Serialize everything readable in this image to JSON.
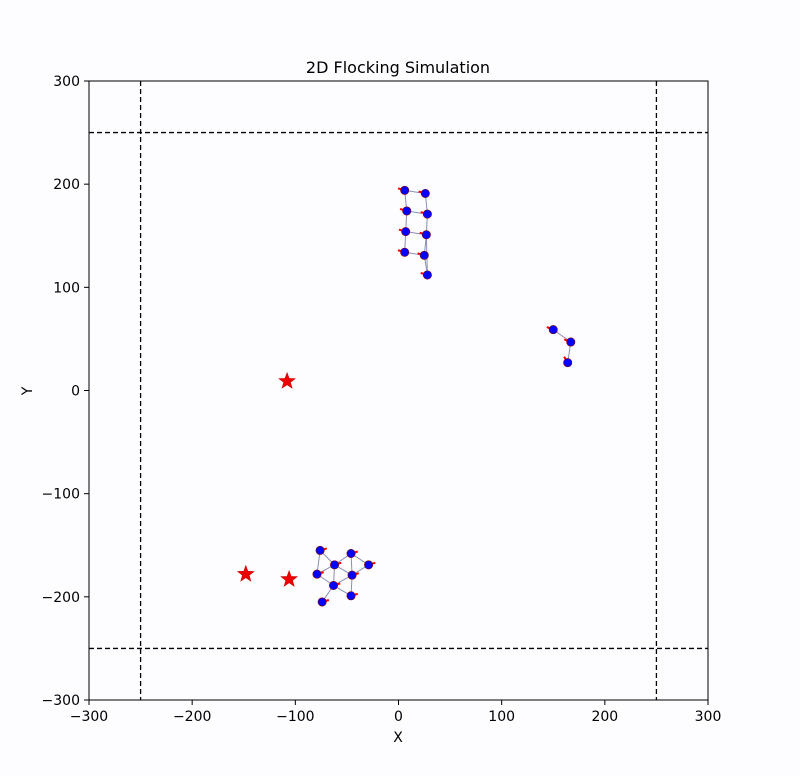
{
  "chart_data": {
    "type": "scatter",
    "title": "2D Flocking Simulation",
    "xlabel": "X",
    "ylabel": "Y",
    "xlim": [
      -300,
      300
    ],
    "ylim": [
      -300,
      300
    ],
    "xticks": [
      -300,
      -200,
      -100,
      0,
      100,
      200,
      300
    ],
    "yticks": [
      -300,
      -200,
      -100,
      0,
      100,
      200,
      300
    ],
    "xtick_labels": [
      "−300",
      "−200",
      "−100",
      "0",
      "100",
      "200",
      "300"
    ],
    "ytick_labels": [
      "−300",
      "−200",
      "−100",
      "0",
      "100",
      "200",
      "300"
    ],
    "grid": false,
    "boundary": {
      "xmin": -250,
      "xmax": 250,
      "ymin": -250,
      "ymax": 250
    },
    "agents": [
      {
        "x": 6,
        "y": 194,
        "vx": -1,
        "vy": 0.3
      },
      {
        "x": 26,
        "y": 191,
        "vx": -1,
        "vy": 0.3
      },
      {
        "x": 8,
        "y": 174,
        "vx": -1,
        "vy": 0.3
      },
      {
        "x": 28,
        "y": 171,
        "vx": -1,
        "vy": 0.3
      },
      {
        "x": 7,
        "y": 154,
        "vx": -1,
        "vy": 0.3
      },
      {
        "x": 27,
        "y": 151,
        "vx": -1,
        "vy": 0.3
      },
      {
        "x": 6,
        "y": 134,
        "vx": -1,
        "vy": 0.3
      },
      {
        "x": 25,
        "y": 131,
        "vx": -1,
        "vy": 0.3
      },
      {
        "x": 28,
        "y": 112,
        "vx": -1,
        "vy": 0.3
      },
      {
        "x": 150,
        "y": 59,
        "vx": -1,
        "vy": 0.4
      },
      {
        "x": 167,
        "y": 47,
        "vx": -1,
        "vy": 0.4
      },
      {
        "x": 164,
        "y": 27,
        "vx": -0.6,
        "vy": 1
      },
      {
        "x": -76,
        "y": -155,
        "vx": 1,
        "vy": 0.3
      },
      {
        "x": -46,
        "y": -158,
        "vx": 1,
        "vy": 0.3
      },
      {
        "x": -62,
        "y": -169,
        "vx": 1,
        "vy": 0.3
      },
      {
        "x": -29,
        "y": -169,
        "vx": 1,
        "vy": 0.3
      },
      {
        "x": -79,
        "y": -178,
        "vx": 1,
        "vy": 0.3
      },
      {
        "x": -45,
        "y": -179,
        "vx": 1,
        "vy": 0.3
      },
      {
        "x": -63,
        "y": -189,
        "vx": 1,
        "vy": 0.3
      },
      {
        "x": -46,
        "y": -199,
        "vx": 1,
        "vy": 0.3
      },
      {
        "x": -74,
        "y": -205,
        "vx": 1,
        "vy": 0.3
      }
    ],
    "links": [
      [
        0,
        1
      ],
      [
        0,
        2
      ],
      [
        1,
        3
      ],
      [
        2,
        3
      ],
      [
        2,
        4
      ],
      [
        3,
        5
      ],
      [
        4,
        5
      ],
      [
        4,
        6
      ],
      [
        5,
        7
      ],
      [
        6,
        7
      ],
      [
        7,
        8
      ],
      [
        5,
        8
      ],
      [
        9,
        10
      ],
      [
        10,
        11
      ],
      [
        12,
        14
      ],
      [
        12,
        16
      ],
      [
        13,
        14
      ],
      [
        13,
        15
      ],
      [
        14,
        16
      ],
      [
        14,
        17
      ],
      [
        14,
        18
      ],
      [
        15,
        17
      ],
      [
        16,
        18
      ],
      [
        17,
        18
      ],
      [
        17,
        19
      ],
      [
        18,
        19
      ],
      [
        18,
        20
      ],
      [
        13,
        17
      ]
    ],
    "obstacles": [
      {
        "x": -108,
        "y": 9
      },
      {
        "x": -148,
        "y": -178
      },
      {
        "x": -106,
        "y": -183
      }
    ],
    "colors": {
      "agent": "#0000ff",
      "agent_edge": "#8b0000",
      "heading": "#ff0000",
      "link": "#8b8fb3",
      "obstacle": "#ee0000",
      "boundary": "#000000"
    }
  }
}
